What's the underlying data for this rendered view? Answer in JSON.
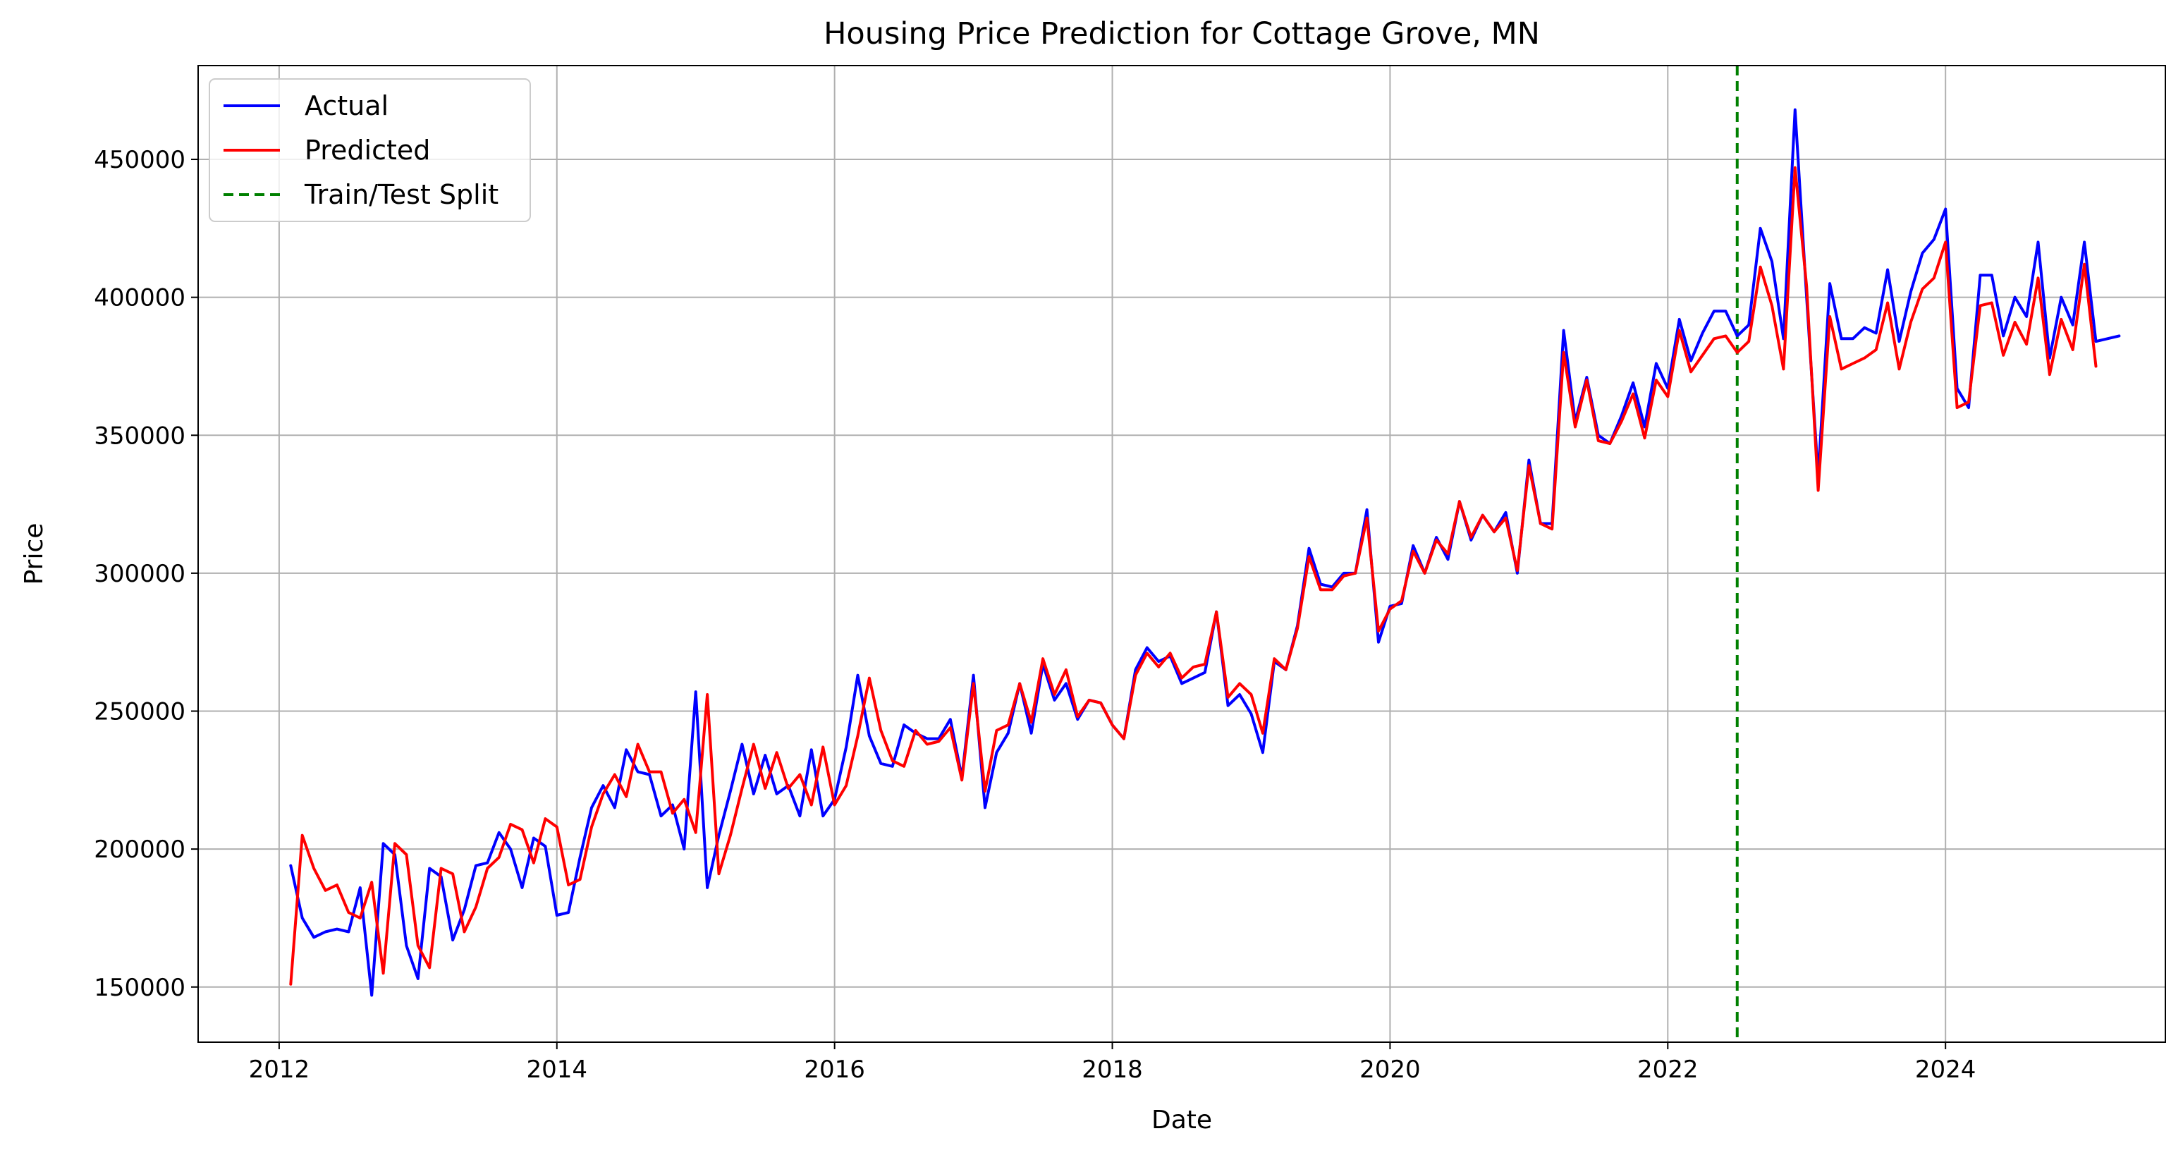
{
  "chart_data": {
    "type": "line",
    "title": "Housing Price Prediction for Cottage Grove, MN",
    "xlabel": "Date",
    "ylabel": "Price",
    "x_axis": "date",
    "xlim": [
      "2011-06-01",
      "2025-08-01"
    ],
    "ylim": [
      130000,
      484000
    ],
    "xticks": [
      "2012",
      "2014",
      "2016",
      "2018",
      "2020",
      "2022",
      "2024"
    ],
    "yticks": [
      150000,
      200000,
      250000,
      300000,
      350000,
      400000,
      450000
    ],
    "grid": true,
    "legend_position": "upper-left",
    "x_start": "2012-02",
    "x_step": "month",
    "series": [
      {
        "name": "Actual",
        "color": "#0000ff",
        "style": "solid",
        "values": [
          194000,
          175000,
          168000,
          170000,
          171000,
          170000,
          186000,
          147000,
          202000,
          198000,
          165000,
          153000,
          193000,
          190000,
          167000,
          178000,
          194000,
          195000,
          206000,
          200000,
          186000,
          204000,
          201000,
          176000,
          177000,
          197000,
          215000,
          223000,
          215000,
          236000,
          228000,
          227000,
          212000,
          216000,
          200000,
          257000,
          186000,
          205000,
          221000,
          238000,
          220000,
          234000,
          220000,
          223000,
          212000,
          236000,
          212000,
          218000,
          237000,
          263000,
          241000,
          231000,
          230000,
          245000,
          242000,
          240000,
          240000,
          247000,
          226000,
          263000,
          215000,
          235000,
          242000,
          260000,
          242000,
          267000,
          254000,
          260000,
          247000,
          254000,
          253000,
          245000,
          240000,
          265000,
          273000,
          268000,
          270000,
          260000,
          262000,
          264000,
          286000,
          252000,
          256000,
          249000,
          235000,
          268000,
          265000,
          281000,
          309000,
          296000,
          295000,
          300000,
          300000,
          323000,
          275000,
          288000,
          289000,
          310000,
          300000,
          313000,
          305000,
          326000,
          312000,
          321000,
          315000,
          322000,
          300000,
          341000,
          318000,
          318000,
          388000,
          355000,
          371000,
          350000,
          347000,
          357000,
          369000,
          353000,
          376000,
          367000,
          392000,
          377000,
          387000,
          395000,
          395000,
          386000,
          390000,
          425000,
          413000,
          385000,
          468000,
          400000,
          335000,
          405000,
          385000,
          385000,
          389000,
          387000,
          410000,
          384000,
          402000,
          416000,
          421000,
          432000,
          367000,
          360000,
          408000,
          408000,
          386000,
          400000,
          393000,
          420000,
          378000,
          400000,
          390000,
          420000,
          384000,
          385000,
          386000
        ]
      },
      {
        "name": "Predicted",
        "color": "#ff0000",
        "style": "solid",
        "values": [
          151000,
          205000,
          193000,
          185000,
          187000,
          177000,
          175000,
          188000,
          155000,
          202000,
          198000,
          165000,
          157000,
          193000,
          191000,
          170000,
          179000,
          193000,
          197000,
          209000,
          207000,
          195000,
          211000,
          208000,
          187000,
          189000,
          208000,
          220000,
          227000,
          219000,
          238000,
          228000,
          228000,
          213000,
          218000,
          206000,
          256000,
          191000,
          205000,
          222000,
          238000,
          222000,
          235000,
          222000,
          227000,
          216000,
          237000,
          216000,
          223000,
          241000,
          262000,
          243000,
          232000,
          230000,
          243000,
          238000,
          239000,
          244000,
          225000,
          260000,
          221000,
          243000,
          245000,
          260000,
          246000,
          269000,
          256000,
          265000,
          248000,
          254000,
          253000,
          245000,
          240000,
          263000,
          271000,
          266000,
          271000,
          262000,
          266000,
          267000,
          286000,
          255000,
          260000,
          256000,
          242000,
          269000,
          265000,
          280000,
          306000,
          294000,
          294000,
          299000,
          300000,
          320000,
          279000,
          287000,
          290000,
          308000,
          300000,
          312000,
          307000,
          326000,
          313000,
          321000,
          315000,
          320000,
          301000,
          339000,
          318000,
          316000,
          380000,
          353000,
          370000,
          348000,
          347000,
          355000,
          365000,
          349000,
          370000,
          364000,
          388000,
          373000,
          379000,
          385000,
          386000,
          380000,
          384000,
          411000,
          397000,
          374000,
          447000,
          404000,
          330000,
          393000,
          374000,
          376000,
          378000,
          381000,
          398000,
          374000,
          391000,
          403000,
          407000,
          420000,
          360000,
          362000,
          397000,
          398000,
          379000,
          391000,
          383000,
          407000,
          372000,
          392000,
          381000,
          412000,
          375000
        ]
      }
    ],
    "split": {
      "name": "Train/Test Split",
      "date": "2022-07-01",
      "color": "#008000",
      "style": "dashed"
    }
  }
}
